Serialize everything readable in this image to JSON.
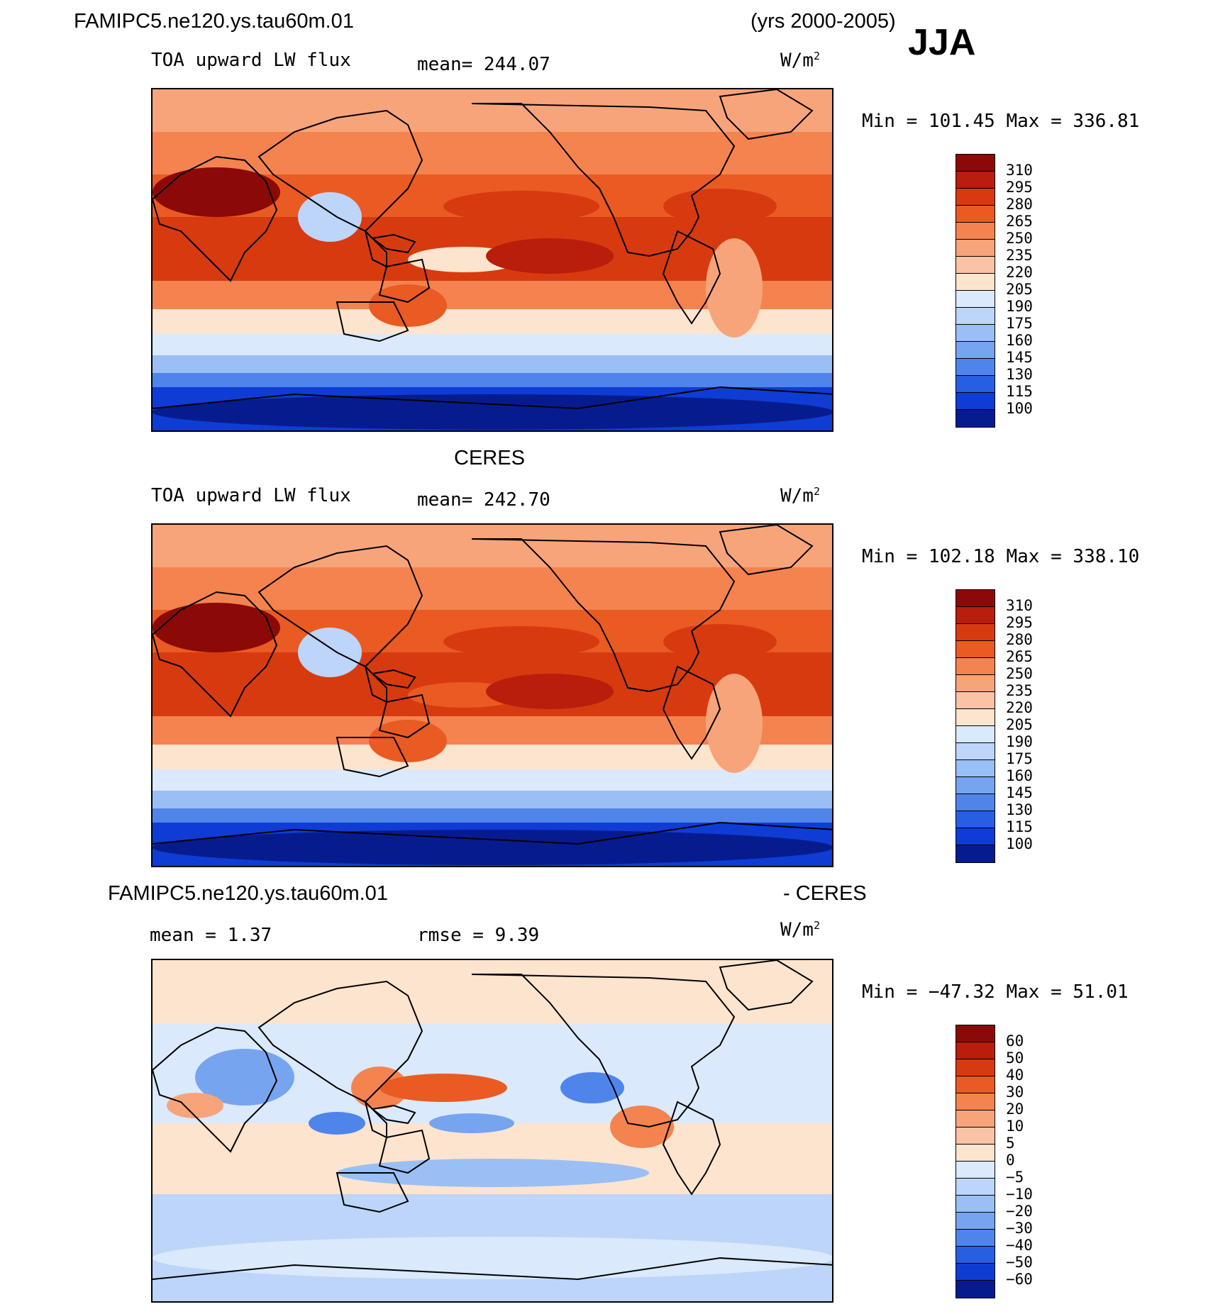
{
  "header": {
    "case_name": "FAMIPC5.ne120.ys.tau60m.01",
    "years": "(yrs 2000-2005)",
    "season": "JJA"
  },
  "chart_data": [
    {
      "type": "heatmap",
      "title": "FAMIPC5.ne120.ys.tau60m.01",
      "variable": "TOA upward LW flux",
      "mean_text": "mean= 244.07",
      "units_base": "W/m",
      "units_exp": "2",
      "minmax_text": "Min = 101.45 Max = 336.81",
      "min": 101.45,
      "max": 336.81,
      "mean": 244.07,
      "colorbar_levels": [
        "310",
        "295",
        "280",
        "265",
        "250",
        "235",
        "220",
        "205",
        "190",
        "175",
        "160",
        "145",
        "130",
        "115",
        "100"
      ],
      "colors": [
        "#8b0a07",
        "#b81e0b",
        "#d83a10",
        "#ea5a23",
        "#f4834f",
        "#f7a47b",
        "#fac3a6",
        "#fde4cf",
        "#dae9fb",
        "#bcd5f8",
        "#9abff4",
        "#77a4ef",
        "#4f84eb",
        "#275fe3",
        "#0f3cd4",
        "#061c8e"
      ]
    },
    {
      "type": "heatmap",
      "title": "CERES",
      "variable": "TOA upward LW flux",
      "mean_text": "mean= 242.70",
      "units_base": "W/m",
      "units_exp": "2",
      "minmax_text": "Min = 102.18 Max = 338.10",
      "min": 102.18,
      "max": 338.1,
      "mean": 242.7,
      "colorbar_levels": [
        "310",
        "295",
        "280",
        "265",
        "250",
        "235",
        "220",
        "205",
        "190",
        "175",
        "160",
        "145",
        "130",
        "115",
        "100"
      ],
      "colors": [
        "#8b0a07",
        "#b81e0b",
        "#d83a10",
        "#ea5a23",
        "#f4834f",
        "#f7a47b",
        "#fac3a6",
        "#fde4cf",
        "#dae9fb",
        "#bcd5f8",
        "#9abff4",
        "#77a4ef",
        "#4f84eb",
        "#275fe3",
        "#0f3cd4",
        "#061c8e"
      ]
    },
    {
      "type": "heatmap",
      "title": "FAMIPC5.ne120.ys.tau60m.01",
      "title_suffix": "- CERES",
      "mean_text": "mean =    1.37",
      "rmse_text": "rmse =    9.39",
      "units_base": "W/m",
      "units_exp": "2",
      "minmax_text": "Min = −47.32 Max =  51.01",
      "min": -47.32,
      "max": 51.01,
      "mean": 1.37,
      "rmse": 9.39,
      "colorbar_levels": [
        "60",
        "50",
        "40",
        "30",
        "20",
        "10",
        "5",
        "0",
        "−5",
        "−10",
        "−20",
        "−30",
        "−40",
        "−50",
        "−60"
      ],
      "colors": [
        "#8b0a07",
        "#b81e0b",
        "#d83a10",
        "#ea5a23",
        "#f4834f",
        "#f7a47b",
        "#fac3a6",
        "#fde4cf",
        "#dae9fb",
        "#bcd5f8",
        "#9abff4",
        "#77a4ef",
        "#4f84eb",
        "#275fe3",
        "#0f3cd4",
        "#061c8e"
      ]
    }
  ]
}
